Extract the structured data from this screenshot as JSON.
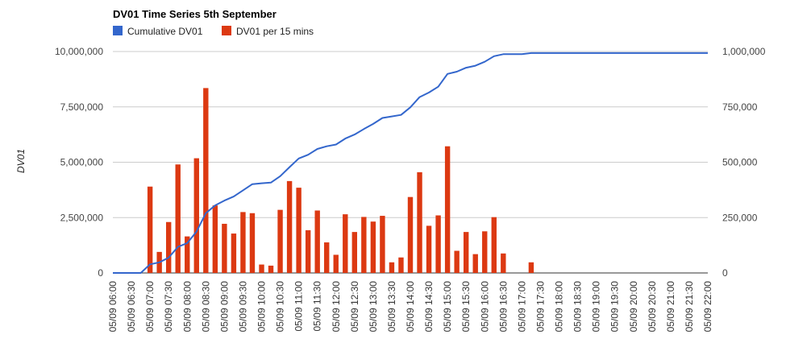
{
  "chart_data": {
    "type": "bar",
    "title": "DV01 Time Series 5th September",
    "ylabel": "DV01",
    "ylabel_right": "",
    "ylim": [
      0,
      10000000
    ],
    "y2lim": [
      0,
      1000000
    ],
    "yticks": [
      "0",
      "2,500,000",
      "5,000,000",
      "7,500,000",
      "10,000,000"
    ],
    "y2ticks": [
      "0",
      "250,000",
      "500,000",
      "750,000",
      "1,000,000"
    ],
    "gridlines": true,
    "legend_position": "top-left",
    "x": [
      "05/09 06:00",
      "05/09 06:15",
      "05/09 06:30",
      "05/09 06:45",
      "05/09 07:00",
      "05/09 07:15",
      "05/09 07:30",
      "05/09 07:45",
      "05/09 08:00",
      "05/09 08:15",
      "05/09 08:30",
      "05/09 08:45",
      "05/09 09:00",
      "05/09 09:15",
      "05/09 09:30",
      "05/09 09:45",
      "05/09 10:00",
      "05/09 10:15",
      "05/09 10:30",
      "05/09 10:45",
      "05/09 11:00",
      "05/09 11:15",
      "05/09 11:30",
      "05/09 11:45",
      "05/09 12:00",
      "05/09 12:15",
      "05/09 12:30",
      "05/09 12:45",
      "05/09 13:00",
      "05/09 13:15",
      "05/09 13:30",
      "05/09 13:45",
      "05/09 14:00",
      "05/09 14:15",
      "05/09 14:30",
      "05/09 14:45",
      "05/09 15:00",
      "05/09 15:15",
      "05/09 15:30",
      "05/09 15:45",
      "05/09 16:00",
      "05/09 16:15",
      "05/09 16:30",
      "05/09 16:45",
      "05/09 17:00",
      "05/09 17:15",
      "05/09 17:30",
      "05/09 17:45",
      "05/09 18:00",
      "05/09 18:15",
      "05/09 18:30",
      "05/09 18:45",
      "05/09 19:00",
      "05/09 19:15",
      "05/09 19:30",
      "05/09 19:45",
      "05/09 20:00",
      "05/09 20:15",
      "05/09 20:30",
      "05/09 20:45",
      "05/09 21:00",
      "05/09 21:15",
      "05/09 21:30",
      "05/09 21:45",
      "05/09 22:00"
    ],
    "xtick_labels": [
      "05/09 06:00",
      "05/09 06:30",
      "05/09 07:00",
      "05/09 07:30",
      "05/09 08:00",
      "05/09 08:30",
      "05/09 09:00",
      "05/09 09:30",
      "05/09 10:00",
      "05/09 10:30",
      "05/09 11:00",
      "05/09 11:30",
      "05/09 12:00",
      "05/09 12:30",
      "05/09 13:00",
      "05/09 13:30",
      "05/09 14:00",
      "05/09 14:30",
      "05/09 15:00",
      "05/09 15:30",
      "05/09 16:00",
      "05/09 16:30",
      "05/09 17:00",
      "05/09 17:30",
      "05/09 18:00",
      "05/09 18:30",
      "05/09 19:00",
      "05/09 19:30",
      "05/09 20:00",
      "05/09 20:30",
      "05/09 21:00",
      "05/09 21:30",
      "05/09 22:00"
    ],
    "series": [
      {
        "name": "Cumulative DV01",
        "type": "line",
        "axis": "left",
        "color": "#3366cc",
        "values": [
          0,
          0,
          0,
          0,
          390000,
          480000,
          690000,
          1180000,
          1350000,
          1870000,
          2700000,
          3050000,
          3270000,
          3450000,
          3730000,
          4010000,
          4050000,
          4080000,
          4370000,
          4780000,
          5170000,
          5340000,
          5600000,
          5720000,
          5800000,
          6070000,
          6250000,
          6500000,
          6730000,
          7000000,
          7070000,
          7140000,
          7480000,
          7940000,
          8150000,
          8410000,
          8990000,
          9090000,
          9270000,
          9360000,
          9540000,
          9790000,
          9880000,
          9880000,
          9880000,
          9930000,
          9930000,
          9930000,
          9930000,
          9930000,
          9930000,
          9930000,
          9930000,
          9930000,
          9930000,
          9930000,
          9930000,
          9930000,
          9930000,
          9930000,
          9930000,
          9930000,
          9930000,
          9930000,
          9930000
        ]
      },
      {
        "name": "DV01 per 15 mins",
        "type": "bar",
        "axis": "right",
        "color": "#dc3912",
        "values": [
          0,
          0,
          0,
          0,
          390000,
          95000,
          230000,
          490000,
          165000,
          518000,
          835000,
          305000,
          222000,
          178000,
          275000,
          270000,
          38000,
          33000,
          285000,
          415000,
          385000,
          193000,
          282000,
          138000,
          82000,
          265000,
          185000,
          253000,
          232000,
          258000,
          48000,
          70000,
          343000,
          455000,
          213000,
          260000,
          572000,
          100000,
          185000,
          85000,
          188000,
          252000,
          88000,
          0,
          0,
          48000,
          0,
          0,
          0,
          0,
          0,
          0,
          0,
          0,
          0,
          0,
          0,
          0,
          0,
          0,
          0,
          0,
          0,
          0,
          0
        ]
      }
    ]
  }
}
